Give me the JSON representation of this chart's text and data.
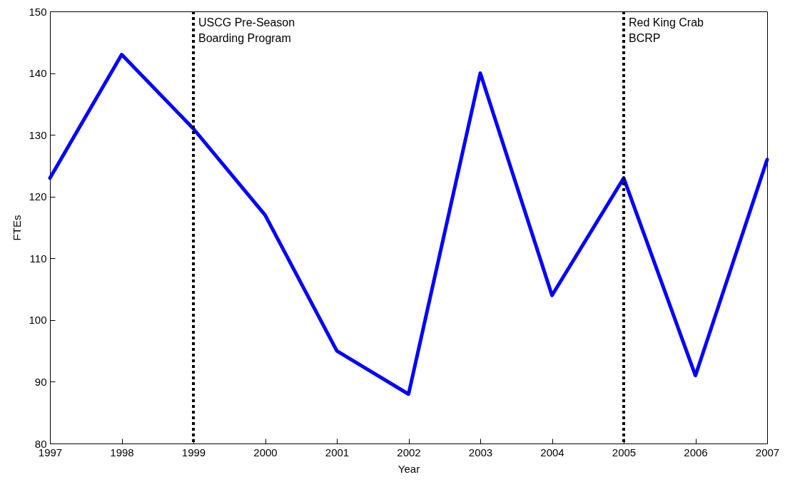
{
  "chart_data": {
    "type": "line",
    "xlabel": "Year",
    "ylabel": "FTEs",
    "x": [
      1997,
      1998,
      1999,
      2000,
      2001,
      2002,
      2003,
      2004,
      2005,
      2006,
      2007
    ],
    "series": [
      {
        "color": "#0000ff",
        "values": [
          123,
          143,
          131,
          117,
          95,
          88,
          140,
          104,
          123,
          91,
          126
        ]
      }
    ],
    "xlim": [
      1997,
      2007
    ],
    "xticks": [
      1997,
      1998,
      1999,
      2000,
      2001,
      2002,
      2003,
      2004,
      2005,
      2006,
      2007
    ],
    "ylim": [
      80,
      150
    ],
    "yticks": [
      80,
      90,
      100,
      110,
      120,
      130,
      140,
      150
    ],
    "grid": false,
    "marker": "none",
    "line_style": "solid",
    "ref_lines": [
      {
        "axis": "x",
        "value": 1999,
        "label": "USCG Pre-Season\nBoarding Program",
        "color": "#000000",
        "line_style": "dotted"
      },
      {
        "axis": "x",
        "value": 2005,
        "label": "Red King Crab\nBCRP",
        "color": "#000000",
        "line_style": "dotted"
      }
    ]
  }
}
